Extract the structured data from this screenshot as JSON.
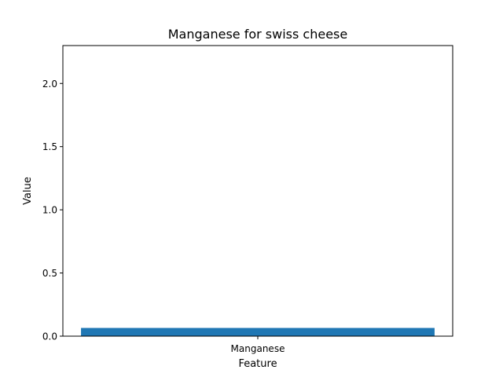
{
  "chart_data": {
    "type": "bar",
    "title": "Manganese for swiss cheese",
    "xlabel": "Feature",
    "ylabel": "Value",
    "categories": [
      "Manganese"
    ],
    "values": [
      0.065
    ],
    "ylim": [
      0,
      2.3
    ],
    "yticks": [
      0.0,
      0.5,
      1.0,
      1.5,
      2.0
    ],
    "ytick_labels": [
      "0.0",
      "0.5",
      "1.0",
      "1.5",
      "2.0"
    ],
    "grid": false,
    "bar_color": "#1f77b4"
  }
}
